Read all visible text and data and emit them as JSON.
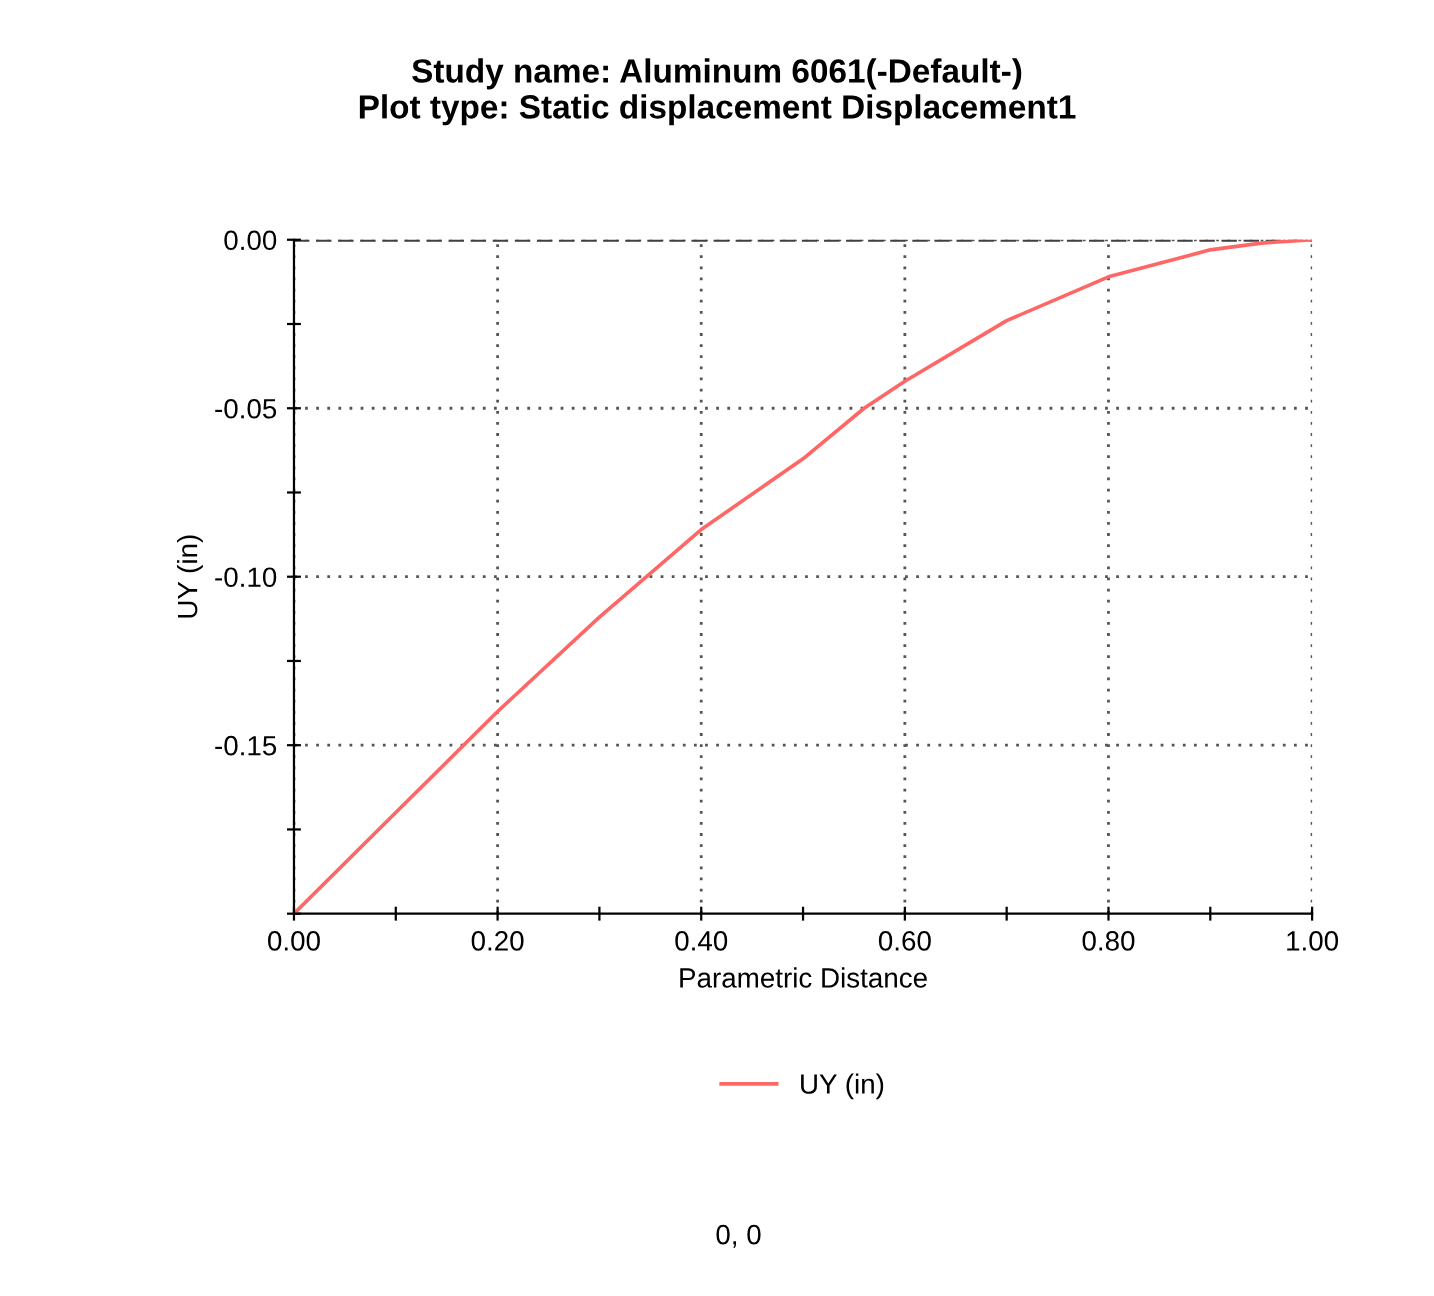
{
  "chart_data": {
    "type": "line",
    "title": "Study name: Aluminum 6061(-Default-)\nPlot type: Static displacement Displacement1",
    "xlabel": "Parametric Distance",
    "ylabel": "UY (in)",
    "series": [
      {
        "name": "UY (in)",
        "color": "#ff6666",
        "x": [
          0,
          0.1,
          0.17,
          0.2,
          0.3,
          0.35,
          0.4,
          0.5,
          0.56,
          0.6,
          0.7,
          0.8,
          0.9,
          0.95,
          1.0
        ],
        "values": [
          -0.2,
          -0.17,
          -0.149,
          -0.14,
          -0.112,
          -0.099,
          -0.086,
          -0.065,
          -0.05,
          -0.042,
          -0.024,
          -0.011,
          -0.003,
          -0.001,
          0.0
        ]
      }
    ],
    "xlim": [
      0,
      1
    ],
    "ylim": [
      -0.2,
      0
    ],
    "xticks": [
      {
        "value": 0,
        "label": "0.00"
      },
      {
        "value": 0.1,
        "label": null
      },
      {
        "value": 0.2,
        "label": "0.20"
      },
      {
        "value": 0.3,
        "label": null
      },
      {
        "value": 0.4,
        "label": "0.40"
      },
      {
        "value": 0.5,
        "label": null
      },
      {
        "value": 0.6,
        "label": "0.60"
      },
      {
        "value": 0.7,
        "label": null
      },
      {
        "value": 0.8,
        "label": "0.80"
      },
      {
        "value": 0.9,
        "label": null
      },
      {
        "value": 1.0,
        "label": "1.00"
      }
    ],
    "yticks": [
      {
        "value": -0.2,
        "label": null
      },
      {
        "value": -0.175,
        "label": null
      },
      {
        "value": -0.15,
        "label": "-0.15"
      },
      {
        "value": -0.125,
        "label": null
      },
      {
        "value": -0.1,
        "label": "-0.10"
      },
      {
        "value": -0.075,
        "label": null
      },
      {
        "value": -0.05,
        "label": "-0.05"
      },
      {
        "value": -0.025,
        "label": null
      },
      {
        "value": 0,
        "label": "0.00"
      }
    ],
    "ref_lines": [
      {
        "axis": "y",
        "value": 0,
        "color": "#404040",
        "line_style": "dashed"
      }
    ],
    "grid": true,
    "legend": "bottom",
    "marker": "none",
    "line_style": "solid",
    "annotations": [
      "0, 0"
    ]
  }
}
